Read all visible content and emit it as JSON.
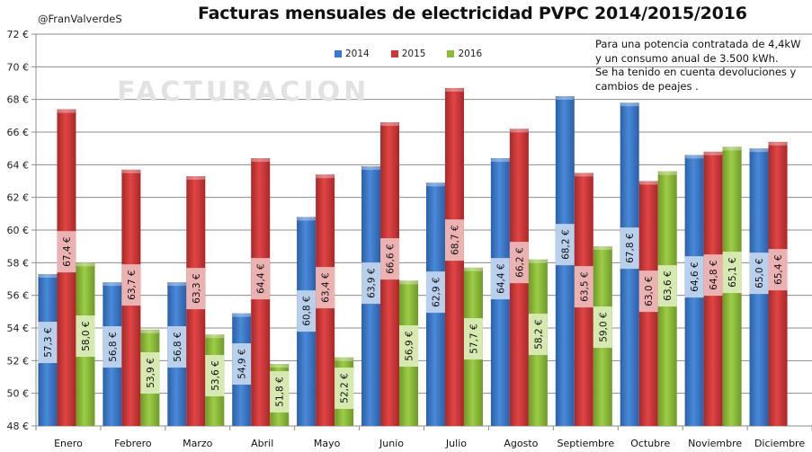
{
  "author": "@FranValverdeS",
  "note_lines": [
    "Para una potencia contratada de 4,4kW",
    "y un consumo anual de 3.500  kWh.",
    "Se ha tenido en cuenta devoluciones y",
    "cambios de peajes ."
  ],
  "watermark": "FACTURACION",
  "chart_data": {
    "type": "bar",
    "title": "Facturas mensuales de electricidad PVPC  2014/2015/2016",
    "xlabel": "",
    "ylabel": "",
    "ylim": [
      48,
      72
    ],
    "yticks": [
      48,
      50,
      52,
      54,
      56,
      58,
      60,
      62,
      64,
      66,
      68,
      70,
      72
    ],
    "ytick_suffix": " €",
    "grid": true,
    "legend_position": "top-center",
    "categories": [
      "Enero",
      "Febrero",
      "Marzo",
      "Abril",
      "Mayo",
      "Junio",
      "Julio",
      "Agosto",
      "Septiembre",
      "Octubre",
      "Noviembre",
      "Diciembre"
    ],
    "series": [
      {
        "name": "2014",
        "color": "#3a78c9",
        "label_bg": "#b9d0ec",
        "values": [
          57.3,
          56.8,
          56.8,
          54.9,
          60.8,
          63.9,
          62.9,
          64.4,
          68.2,
          67.8,
          64.6,
          65.0
        ]
      },
      {
        "name": "2015",
        "color": "#cf3636",
        "label_bg": "#ecb2b2",
        "values": [
          67.4,
          63.7,
          63.3,
          64.4,
          63.4,
          66.6,
          68.7,
          66.2,
          63.5,
          63.0,
          64.8,
          65.4
        ]
      },
      {
        "name": "2016",
        "color": "#8cbb3a",
        "label_bg": "#d6e9b0",
        "values": [
          58.0,
          53.9,
          53.6,
          51.8,
          52.2,
          56.9,
          57.7,
          58.2,
          59.0,
          63.6,
          65.1,
          null
        ]
      }
    ]
  }
}
